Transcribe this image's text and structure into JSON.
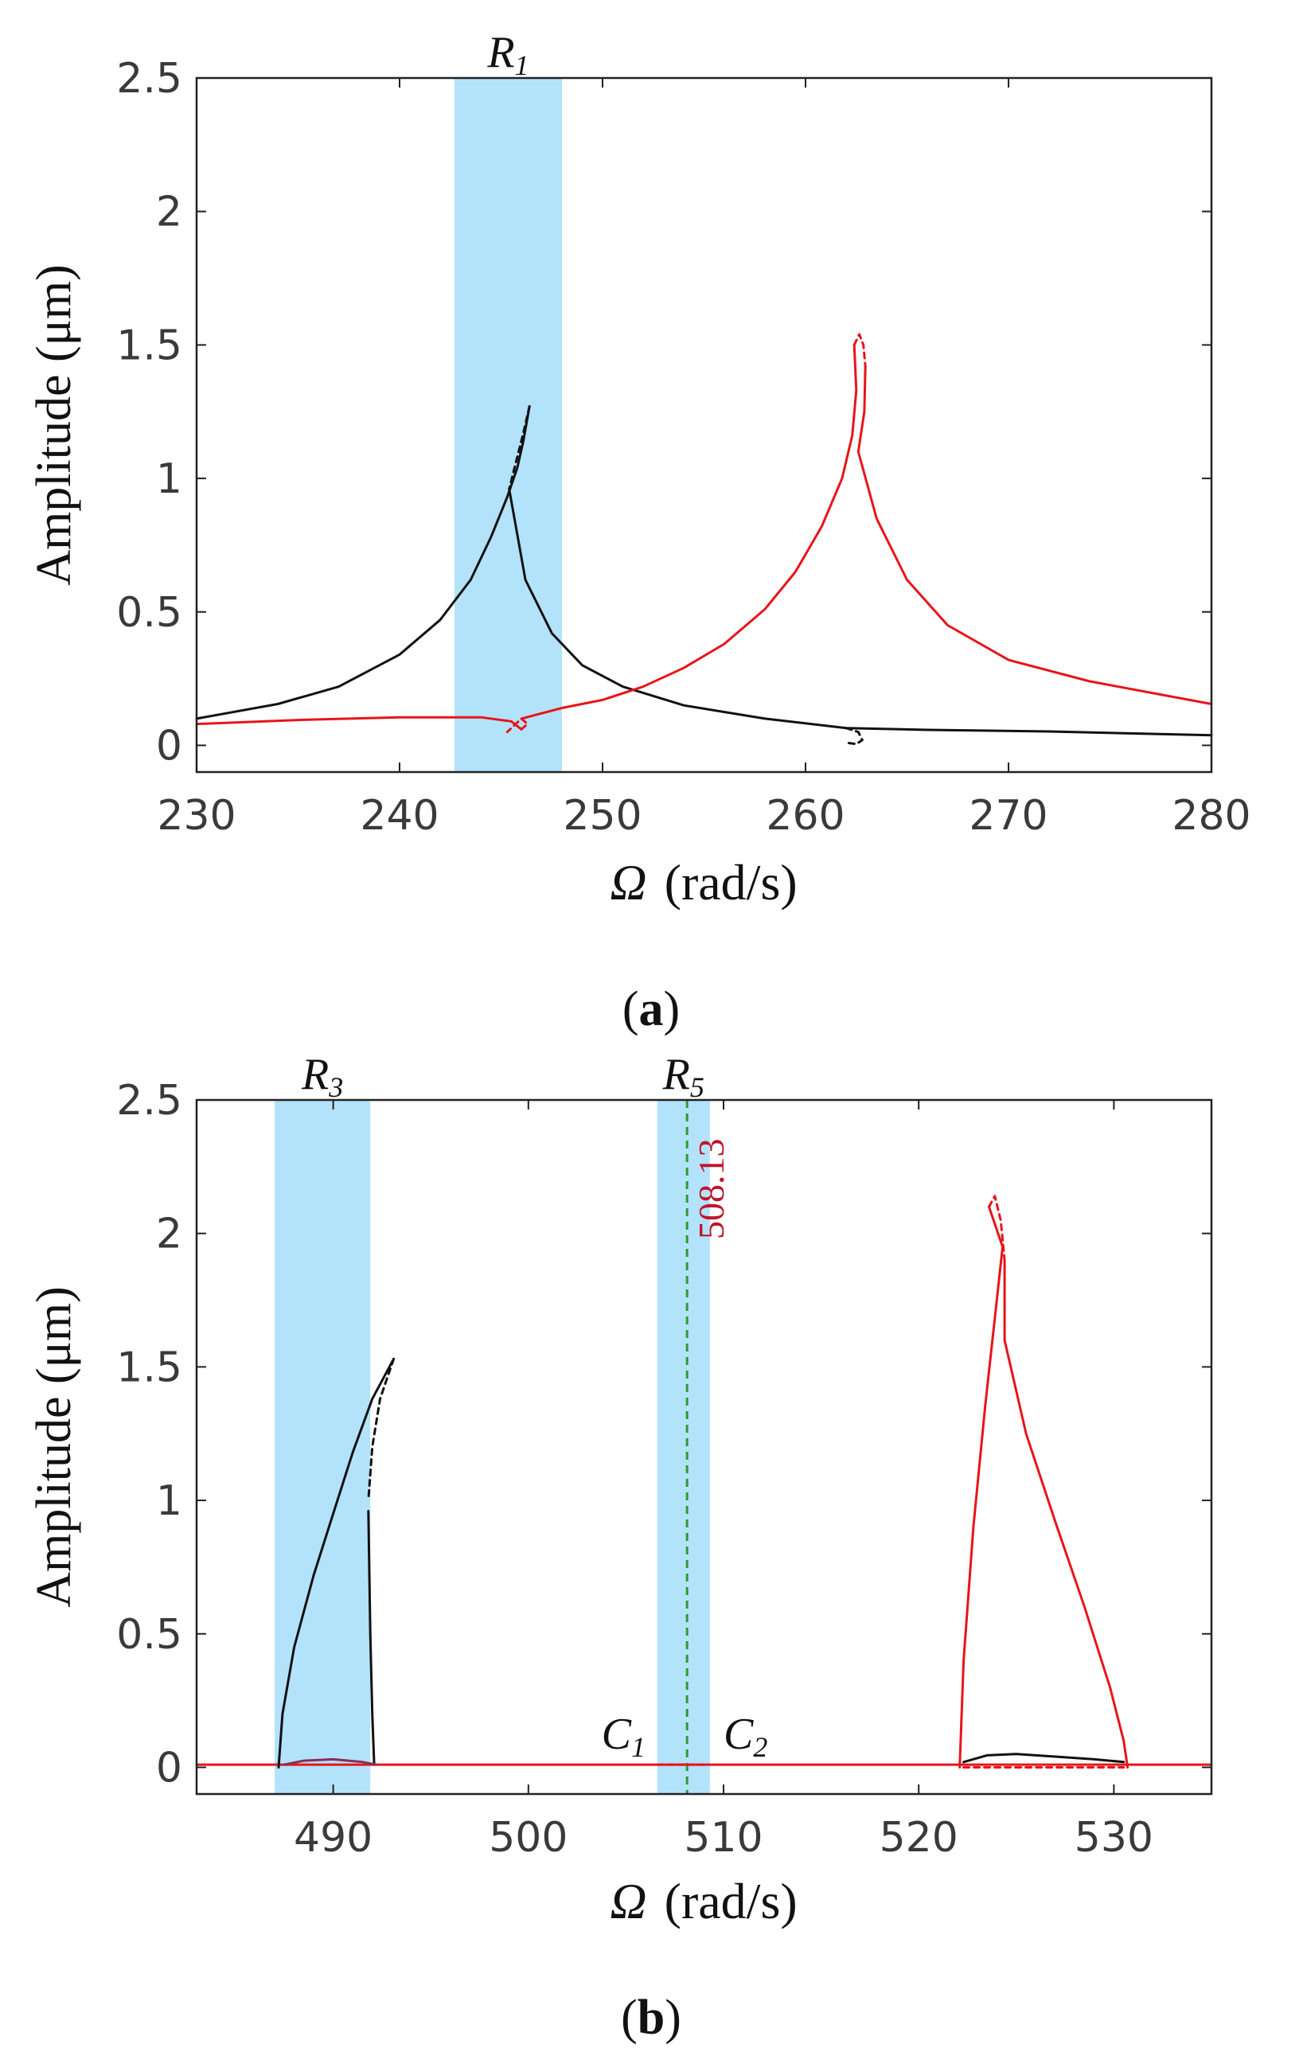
{
  "chart_data": [
    {
      "type": "line",
      "panel": "a",
      "caption_letter": "a",
      "xlabel_symbol": "Ω",
      "xlabel_unit": "(rad/s)",
      "ylabel": "Amplitude (μm)",
      "xlim": [
        230,
        280
      ],
      "ylim": [
        -0.1,
        2.5
      ],
      "x_ticks": [
        "230",
        "240",
        "250",
        "260",
        "270",
        "280"
      ],
      "y_ticks": [
        "0",
        "0.5",
        "1",
        "1.5",
        "2",
        "2.5"
      ],
      "x_tick_values": [
        230,
        240,
        250,
        260,
        270,
        280
      ],
      "y_tick_values": [
        0,
        0.5,
        1,
        1.5,
        2,
        2.5
      ],
      "regions": [
        {
          "label": "R",
          "subscript": "1",
          "x0": 242.7,
          "x1": 248.0,
          "color": "#b3e3fb"
        }
      ],
      "series": [
        {
          "name": "black stable",
          "color": "#111111",
          "dashed": false,
          "points": [
            [
              230,
              0.1
            ],
            [
              234,
              0.155
            ],
            [
              237,
              0.22
            ],
            [
              240,
              0.34
            ],
            [
              242,
              0.47
            ],
            [
              243.5,
              0.62
            ],
            [
              244.5,
              0.78
            ],
            [
              245.3,
              0.93
            ],
            [
              245.8,
              1.04
            ],
            [
              246.1,
              1.14
            ],
            [
              246.4,
              1.27
            ]
          ]
        },
        {
          "name": "black unstable",
          "color": "#111111",
          "dashed": true,
          "points": [
            [
              246.4,
              1.27
            ],
            [
              246.1,
              1.17
            ],
            [
              245.7,
              1.05
            ],
            [
              245.4,
              0.96
            ]
          ]
        },
        {
          "name": "black stable lower",
          "color": "#111111",
          "dashed": false,
          "points": [
            [
              245.4,
              0.96
            ],
            [
              246.2,
              0.62
            ],
            [
              247.5,
              0.42
            ],
            [
              249,
              0.3
            ],
            [
              251,
              0.22
            ],
            [
              254,
              0.15
            ],
            [
              258,
              0.1
            ],
            [
              262,
              0.065
            ],
            [
              266,
              0.058
            ],
            [
              272,
              0.052
            ],
            [
              280,
              0.038
            ]
          ]
        },
        {
          "name": "black unstable small",
          "color": "#111111",
          "dashed": true,
          "points": [
            [
              262,
              0.065
            ],
            [
              262.6,
              0.05
            ],
            [
              262.8,
              0.02
            ],
            [
              262.5,
              0.005
            ],
            [
              262,
              0.01
            ]
          ]
        },
        {
          "name": "red stable",
          "color": "#e8141a",
          "dashed": false,
          "points": [
            [
              230,
              0.08
            ],
            [
              235,
              0.095
            ],
            [
              240,
              0.105
            ],
            [
              244,
              0.105
            ],
            [
              245.5,
              0.09
            ],
            [
              246,
              0.06
            ]
          ]
        },
        {
          "name": "red unstable small",
          "color": "#e8141a",
          "dashed": true,
          "points": [
            [
              246,
              0.06
            ],
            [
              246.3,
              0.08
            ],
            [
              246,
              0.1
            ],
            [
              245.3,
              0.05
            ]
          ]
        },
        {
          "name": "red stable upper",
          "color": "#e8141a",
          "dashed": false,
          "points": [
            [
              246,
              0.1
            ],
            [
              248,
              0.14
            ],
            [
              250,
              0.17
            ],
            [
              252,
              0.22
            ],
            [
              254,
              0.29
            ],
            [
              256,
              0.38
            ],
            [
              258,
              0.51
            ],
            [
              259.5,
              0.65
            ],
            [
              260.8,
              0.82
            ],
            [
              261.8,
              1.0
            ],
            [
              262.3,
              1.16
            ],
            [
              262.5,
              1.33
            ],
            [
              262.4,
              1.5
            ]
          ]
        },
        {
          "name": "red unstable",
          "color": "#e8141a",
          "dashed": true,
          "points": [
            [
              262.4,
              1.5
            ],
            [
              262.65,
              1.54
            ],
            [
              262.85,
              1.5
            ],
            [
              262.95,
              1.42
            ]
          ]
        },
        {
          "name": "red stable lower",
          "color": "#e8141a",
          "dashed": false,
          "points": [
            [
              262.95,
              1.42
            ],
            [
              262.9,
              1.25
            ],
            [
              262.6,
              1.1
            ],
            [
              263.5,
              0.85
            ],
            [
              265,
              0.62
            ],
            [
              267,
              0.45
            ],
            [
              270,
              0.32
            ],
            [
              274,
              0.24
            ],
            [
              280,
              0.155
            ]
          ]
        }
      ]
    },
    {
      "type": "line",
      "panel": "b",
      "caption_letter": "b",
      "xlabel_symbol": "Ω",
      "xlabel_unit": "(rad/s)",
      "ylabel": "Amplitude (μm)",
      "xlim": [
        483,
        535
      ],
      "ylim": [
        -0.1,
        2.5
      ],
      "x_ticks": [
        "490",
        "500",
        "510",
        "520",
        "530"
      ],
      "y_ticks": [
        "0",
        "0.5",
        "1",
        "1.5",
        "2",
        "2.5"
      ],
      "x_tick_values": [
        490,
        500,
        510,
        520,
        530
      ],
      "y_tick_values": [
        0,
        0.5,
        1,
        1.5,
        2,
        2.5
      ],
      "regions": [
        {
          "label": "R",
          "subscript": "3",
          "x0": 487.0,
          "x1": 491.9,
          "color": "#b3e3fb"
        },
        {
          "label": "R",
          "subscript": "5",
          "x0": 506.6,
          "x1": 509.3,
          "color": "#b3e3fb"
        }
      ],
      "vline": {
        "x": 508.13,
        "label": "508.13",
        "color": "#2e9a2e"
      },
      "annotations": [
        {
          "label": "C",
          "subscript": "1",
          "x": 506.0,
          "y": 0.07
        },
        {
          "label": "C",
          "subscript": "2",
          "x": 510.0,
          "y": 0.07
        }
      ],
      "series": [
        {
          "name": "red baseline",
          "color": "#e8141a",
          "dashed": false,
          "points": [
            [
              483,
              0.01
            ],
            [
              535,
              0.01
            ]
          ]
        },
        {
          "name": "black stable left",
          "color": "#111111",
          "dashed": false,
          "points": [
            [
              487.2,
              0.0
            ],
            [
              487.4,
              0.2
            ],
            [
              488,
              0.45
            ],
            [
              489,
              0.72
            ],
            [
              490,
              0.95
            ],
            [
              491,
              1.18
            ],
            [
              492,
              1.38
            ],
            [
              493.1,
              1.53
            ]
          ]
        },
        {
          "name": "black unstable left",
          "color": "#111111",
          "dashed": true,
          "points": [
            [
              493.1,
              1.53
            ],
            [
              492.4,
              1.38
            ],
            [
              492.0,
              1.2
            ],
            [
              491.8,
              1.0
            ]
          ]
        },
        {
          "name": "black stable drop",
          "color": "#111111",
          "dashed": false,
          "points": [
            [
              491.8,
              0.96
            ],
            [
              491.9,
              0.5
            ],
            [
              492.0,
              0.2
            ],
            [
              492.1,
              0.01
            ]
          ]
        },
        {
          "name": "purple lobe",
          "color": "#8a2e55",
          "dashed": false,
          "points": [
            [
              487.5,
              0.01
            ],
            [
              488.5,
              0.025
            ],
            [
              490,
              0.03
            ],
            [
              491.5,
              0.02
            ],
            [
              492.2,
              0.01
            ]
          ]
        },
        {
          "name": "red unstable mid",
          "color": "#e8141a",
          "dashed": true,
          "points": [
            [
              506.6,
              0.01
            ],
            [
              509.3,
              0.01
            ]
          ]
        },
        {
          "name": "red stable right up",
          "color": "#e8141a",
          "dashed": false,
          "points": [
            [
              522.1,
              0.0
            ],
            [
              522.3,
              0.4
            ],
            [
              522.8,
              0.9
            ],
            [
              523.4,
              1.35
            ],
            [
              524.0,
              1.75
            ],
            [
              524.3,
              1.95
            ],
            [
              523.6,
              2.1
            ]
          ]
        },
        {
          "name": "red unstable right",
          "color": "#e8141a",
          "dashed": true,
          "points": [
            [
              523.6,
              2.1
            ],
            [
              523.9,
              2.14
            ],
            [
              524.2,
              2.05
            ],
            [
              524.4,
              1.9
            ]
          ]
        },
        {
          "name": "red stable right down",
          "color": "#e8141a",
          "dashed": false,
          "points": [
            [
              524.4,
              1.9
            ],
            [
              524.4,
              1.6
            ],
            [
              525.5,
              1.25
            ],
            [
              527,
              0.92
            ],
            [
              528.5,
              0.6
            ],
            [
              529.8,
              0.3
            ],
            [
              530.5,
              0.1
            ],
            [
              530.7,
              0.0
            ]
          ]
        },
        {
          "name": "black lobe right",
          "color": "#111111",
          "dashed": false,
          "points": [
            [
              522.3,
              0.02
            ],
            [
              523.5,
              0.045
            ],
            [
              525,
              0.05
            ],
            [
              527,
              0.04
            ],
            [
              529,
              0.03
            ],
            [
              530.5,
              0.02
            ]
          ]
        },
        {
          "name": "red dashed right",
          "color": "#e8141a",
          "dashed": true,
          "points": [
            [
              522.3,
              0.0
            ],
            [
              526,
              0.0
            ],
            [
              530.5,
              0.0
            ]
          ]
        }
      ]
    }
  ]
}
